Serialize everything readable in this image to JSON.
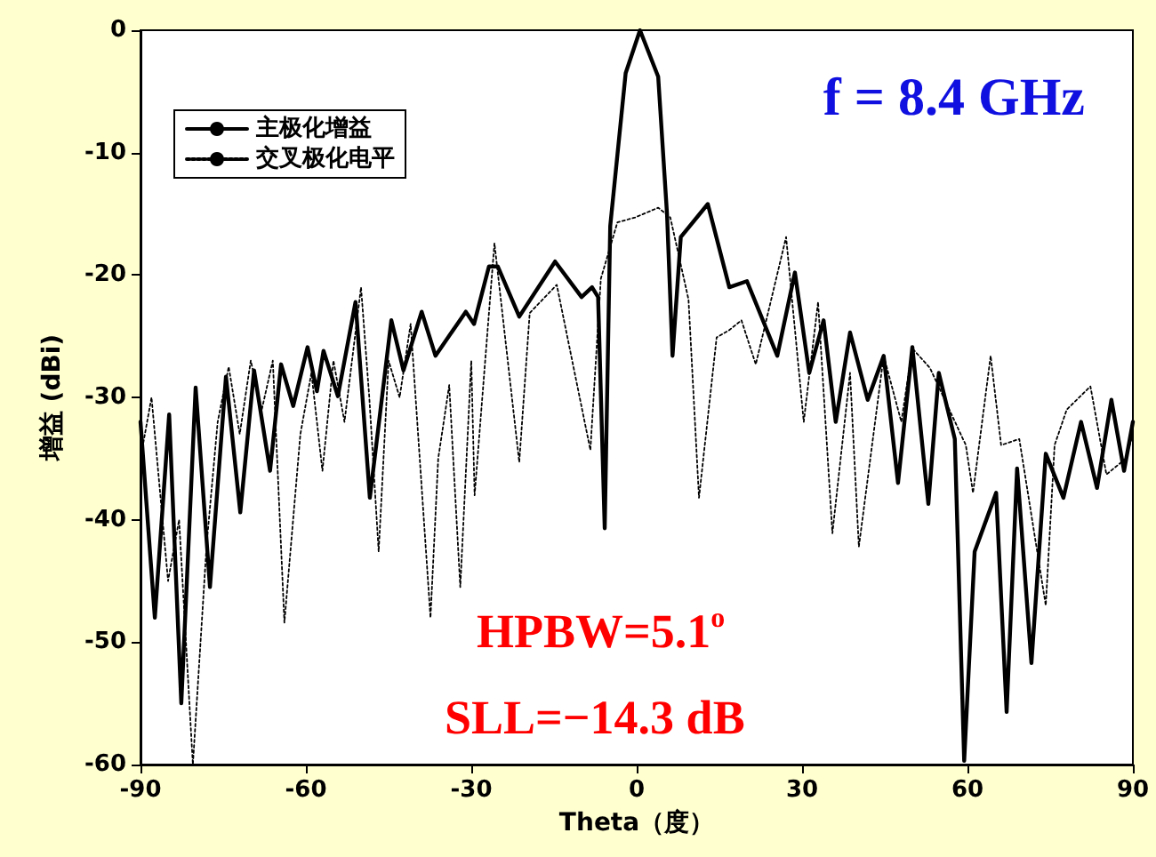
{
  "chart_data": {
    "type": "line",
    "xlabel": "Theta（度）",
    "ylabel": "增益 (dBi)",
    "annotations": [
      "f = 8.4 GHz",
      "HPBW=5.1$^{o}$",
      "SLL=−14.3 dB"
    ],
    "xlim": [
      -90,
      90
    ],
    "xticks": [
      -90,
      -60,
      -30,
      0,
      30,
      60,
      90
    ],
    "ylim": [
      -60,
      0
    ],
    "yticks": [
      -60,
      -50,
      -40,
      -30,
      -20,
      -10,
      0
    ],
    "grid": false,
    "legend": "top left",
    "marker": "none",
    "series": [
      {
        "name": "主极化增益",
        "color": "#000000",
        "line_style": "solid",
        "x": [
          -90,
          -87.4,
          -84.8,
          -82.6,
          -80,
          -77.4,
          -74.5,
          -71.9,
          -69.4,
          -66.5,
          -64.5,
          -62.3,
          -59.7,
          -58,
          -56.8,
          -54.2,
          -51,
          -48.4,
          -44.5,
          -42.3,
          -39,
          -36.5,
          -31,
          -29.5,
          -26.8,
          -25.2,
          -21.3,
          -14.8,
          -10,
          -8.1,
          -7,
          -5.8,
          -4.8,
          -2,
          0.6,
          3.9,
          5.5,
          6.5,
          8,
          12.9,
          16.8,
          20,
          25.5,
          28.7,
          31.3,
          33.9,
          36.1,
          38.7,
          41.9,
          44.8,
          47.4,
          50,
          52.9,
          54.8,
          57.7,
          59.4,
          61.3,
          65.2,
          67.1,
          69,
          71.6,
          74.2,
          77.4,
          80.6,
          83.5,
          86.1,
          88.4,
          90
        ],
        "values": [
          -32,
          -48,
          -31.4,
          -55,
          -29.2,
          -45.5,
          -28.3,
          -39.4,
          -27.8,
          -36,
          -27.3,
          -30.7,
          -25.9,
          -29.5,
          -26.2,
          -29.9,
          -22.2,
          -38.2,
          -23.7,
          -27.8,
          -23,
          -26.6,
          -23,
          -24,
          -19.3,
          -19.3,
          -23.4,
          -18.9,
          -21.8,
          -21,
          -21.8,
          -40.7,
          -16,
          -3.5,
          0,
          -3.8,
          -15,
          -26.6,
          -16.9,
          -14.2,
          -21,
          -20.5,
          -26.6,
          -19.8,
          -28,
          -23.7,
          -32,
          -24.7,
          -30.2,
          -26.6,
          -37,
          -25.9,
          -38.7,
          -28,
          -33.4,
          -59.7,
          -42.6,
          -37.8,
          -55.7,
          -35.8,
          -51.7,
          -34.6,
          -38.2,
          -32,
          -37.4,
          -30.2,
          -36,
          -32
        ]
      },
      {
        "name": "交叉极化电平",
        "color": "#000000",
        "line_style": "dotted",
        "x": [
          -90,
          -88,
          -85,
          -83,
          -80.5,
          -78,
          -76,
          -74,
          -72,
          -70,
          -68,
          -66,
          -63.9,
          -61,
          -59,
          -57,
          -55,
          -53,
          -50,
          -48.5,
          -46.8,
          -45,
          -43,
          -41,
          -37.4,
          -36,
          -34,
          -32,
          -30,
          -29.4,
          -25.8,
          -21.3,
          -19.4,
          -14.5,
          -8.4,
          -6.5,
          -3.5,
          -0.3,
          3.9,
          6.1,
          9.4,
          11.3,
          14.5,
          16.8,
          19,
          21.6,
          27.1,
          30.3,
          32.9,
          35.5,
          38.7,
          40.3,
          44.8,
          48,
          50,
          53.2,
          59.7,
          61,
          64.2,
          66.1,
          69.4,
          74.2,
          75.8,
          78,
          82.3,
          85.2,
          88.7,
          90
        ],
        "values": [
          -35,
          -30,
          -45,
          -40,
          -60,
          -42,
          -32,
          -27.5,
          -33,
          -27,
          -31,
          -27,
          -48.4,
          -33,
          -28,
          -36,
          -27,
          -32,
          -21,
          -30,
          -42.6,
          -27,
          -30,
          -24,
          -48,
          -35,
          -29,
          -45.5,
          -27,
          -38,
          -17.4,
          -35.3,
          -23.1,
          -20.8,
          -34.3,
          -20.3,
          -15.7,
          -15.3,
          -14.5,
          -15.3,
          -22,
          -38.2,
          -25.1,
          -24.5,
          -23.7,
          -27.3,
          -16.9,
          -32,
          -22.2,
          -41.1,
          -28,
          -42.2,
          -26.6,
          -32,
          -26,
          -27.6,
          -33.9,
          -37.8,
          -26.6,
          -33.9,
          -33.4,
          -47,
          -33.9,
          -31,
          -29.1,
          -36.3,
          -35,
          -33
        ]
      }
    ]
  }
}
